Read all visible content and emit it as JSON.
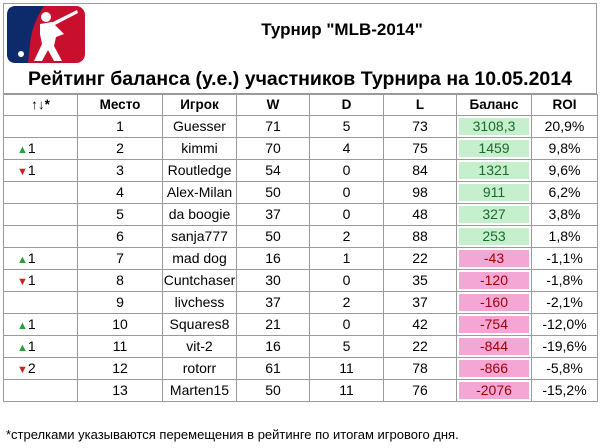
{
  "header": {
    "title": "Турнир \"MLB-2014\"",
    "subtitle": "Рейтинг баланса (у.е.) участников Турнира на 10.05.2014",
    "logo_icon": "mlb-logo-icon"
  },
  "columns": [
    "↑↓*",
    "Место",
    "Игрок",
    "W",
    "D",
    "L",
    "Баланс",
    "ROI"
  ],
  "colors": {
    "positive_balance": "#c6efce",
    "negative_balance": "#f4a7d4",
    "positive_text": "#1a6b2a",
    "negative_text": "#9c0006",
    "arrow_up": "#22a33a",
    "arrow_down": "#d42020"
  },
  "rows": [
    {
      "move": "",
      "dir": "",
      "place": "1",
      "player": "Guesser",
      "w": "71",
      "d": "5",
      "l": "73",
      "balance": "3108,3",
      "roi": "20,9%",
      "sign": "pos"
    },
    {
      "move": "1",
      "dir": "up",
      "place": "2",
      "player": "kimmi",
      "w": "70",
      "d": "4",
      "l": "75",
      "balance": "1459",
      "roi": "9,8%",
      "sign": "pos"
    },
    {
      "move": "1",
      "dir": "down",
      "place": "3",
      "player": "Routledge",
      "w": "54",
      "d": "0",
      "l": "84",
      "balance": "1321",
      "roi": "9,6%",
      "sign": "pos"
    },
    {
      "move": "",
      "dir": "",
      "place": "4",
      "player": "Alex-Milan",
      "w": "50",
      "d": "0",
      "l": "98",
      "balance": "911",
      "roi": "6,2%",
      "sign": "pos"
    },
    {
      "move": "",
      "dir": "",
      "place": "5",
      "player": "da boogie",
      "w": "37",
      "d": "0",
      "l": "48",
      "balance": "327",
      "roi": "3,8%",
      "sign": "pos"
    },
    {
      "move": "",
      "dir": "",
      "place": "6",
      "player": "sanja777",
      "w": "50",
      "d": "2",
      "l": "88",
      "balance": "253",
      "roi": "1,8%",
      "sign": "pos"
    },
    {
      "move": "1",
      "dir": "up",
      "place": "7",
      "player": "mad dog",
      "w": "16",
      "d": "1",
      "l": "22",
      "balance": "-43",
      "roi": "-1,1%",
      "sign": "neg"
    },
    {
      "move": "1",
      "dir": "down",
      "place": "8",
      "player": "Cuntchaser",
      "w": "30",
      "d": "0",
      "l": "35",
      "balance": "-120",
      "roi": "-1,8%",
      "sign": "neg"
    },
    {
      "move": "",
      "dir": "",
      "place": "9",
      "player": "livchess",
      "w": "37",
      "d": "2",
      "l": "37",
      "balance": "-160",
      "roi": "-2,1%",
      "sign": "neg"
    },
    {
      "move": "1",
      "dir": "up",
      "place": "10",
      "player": "Squares8",
      "w": "21",
      "d": "0",
      "l": "42",
      "balance": "-754",
      "roi": "-12,0%",
      "sign": "neg"
    },
    {
      "move": "1",
      "dir": "up",
      "place": "11",
      "player": "vit-2",
      "w": "16",
      "d": "5",
      "l": "22",
      "balance": "-844",
      "roi": "-19,6%",
      "sign": "neg"
    },
    {
      "move": "2",
      "dir": "down",
      "place": "12",
      "player": "rotorr",
      "w": "61",
      "d": "11",
      "l": "78",
      "balance": "-866",
      "roi": "-5,8%",
      "sign": "neg"
    },
    {
      "move": "",
      "dir": "",
      "place": "13",
      "player": "Marten15",
      "w": "50",
      "d": "11",
      "l": "76",
      "balance": "-2076",
      "roi": "-15,2%",
      "sign": "neg"
    }
  ],
  "footnote": "*стрелками указываются перемещения в рейтинге по итогам игрового дня."
}
